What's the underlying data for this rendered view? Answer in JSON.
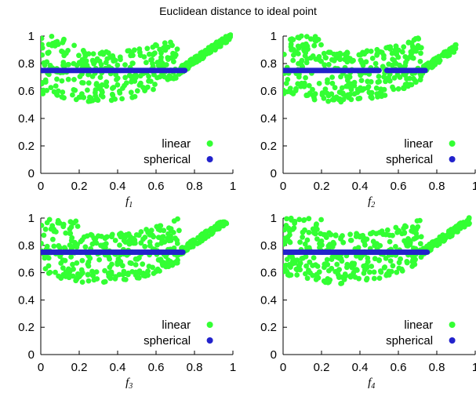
{
  "title": "Euclidean distance to ideal point",
  "colors": {
    "linear": "#33ff33",
    "spherical": "#2222cc"
  },
  "chart_data": [
    {
      "type": "scatter",
      "xlabel": "f",
      "xlabel_sub": "1",
      "xlim": [
        0,
        1
      ],
      "ylim": [
        0,
        1
      ],
      "xticks": [
        "0",
        "0.2",
        "0.4",
        "0.6",
        "0.8",
        "1"
      ],
      "yticks": [
        "0",
        "0.2",
        "0.4",
        "0.6",
        "0.8",
        "1"
      ],
      "legend_position": "bottom-right",
      "series": [
        {
          "name": "linear",
          "color": "#33ff33",
          "x_range": [
            0,
            0.99
          ],
          "y_band": "curved band from about 0.5 to 1.0, minimum near x=0.3",
          "n_points": 420
        },
        {
          "name": "spherical",
          "color": "#2222cc",
          "x_range": [
            0,
            0.75
          ],
          "y": 0.75,
          "gaps": []
        }
      ]
    },
    {
      "type": "scatter",
      "xlabel": "f",
      "xlabel_sub": "2",
      "xlim": [
        0,
        1
      ],
      "ylim": [
        0,
        1
      ],
      "xticks": [
        "0",
        "0.2",
        "0.4",
        "0.6",
        "0.8",
        "1"
      ],
      "yticks": [
        "0",
        "0.2",
        "0.4",
        "0.6",
        "0.8",
        "1"
      ],
      "legend_position": "bottom-right",
      "series": [
        {
          "name": "linear",
          "color": "#33ff33",
          "x_range": [
            0,
            0.9
          ],
          "y_band": "curved band from about 0.5 to 1.0, minimum near x=0.35",
          "n_points": 420
        },
        {
          "name": "spherical",
          "color": "#2222cc",
          "x_range": [
            0,
            0.74
          ],
          "y": 0.75,
          "gaps": [
            [
              0.5,
              0.54
            ]
          ]
        }
      ]
    },
    {
      "type": "scatter",
      "xlabel": "f",
      "xlabel_sub": "3",
      "xlim": [
        0,
        1
      ],
      "ylim": [
        0,
        1
      ],
      "xticks": [
        "0",
        "0.2",
        "0.4",
        "0.6",
        "0.8",
        "1"
      ],
      "yticks": [
        "0",
        "0.2",
        "0.4",
        "0.6",
        "0.8",
        "1"
      ],
      "legend_position": "bottom-right",
      "series": [
        {
          "name": "linear",
          "color": "#33ff33",
          "x_range": [
            0,
            0.97
          ],
          "y_band": "curved band from about 0.5 to 1.0, minimum near x=0.3",
          "n_points": 420
        },
        {
          "name": "spherical",
          "color": "#2222cc",
          "x_range": [
            0,
            0.74
          ],
          "y": 0.75,
          "gaps": []
        }
      ]
    },
    {
      "type": "scatter",
      "xlabel": "f",
      "xlabel_sub": "4",
      "xlim": [
        0,
        1
      ],
      "ylim": [
        0,
        1
      ],
      "xticks": [
        "0",
        "0.2",
        "0.4",
        "0.6",
        "0.8",
        "1"
      ],
      "yticks": [
        "0",
        "0.2",
        "0.4",
        "0.6",
        "0.8",
        "1"
      ],
      "legend_position": "bottom-right",
      "series": [
        {
          "name": "linear",
          "color": "#33ff33",
          "x_range": [
            0,
            0.97
          ],
          "y_band": "curved band from about 0.5 to 1.0, minimum near x=0.3",
          "n_points": 420
        },
        {
          "name": "spherical",
          "color": "#2222cc",
          "x_range": [
            0,
            0.75
          ],
          "y": 0.75,
          "gaps": []
        }
      ]
    }
  ]
}
